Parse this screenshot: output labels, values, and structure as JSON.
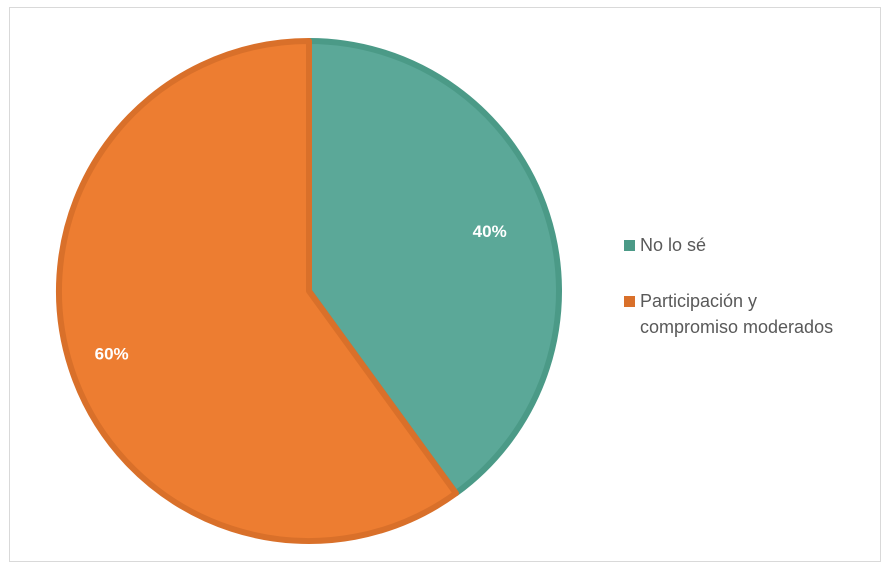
{
  "chart_data": {
    "type": "pie",
    "title": "",
    "slices": [
      {
        "label": "No lo sé",
        "value": 40,
        "data_label": "40%",
        "color": "#5ba898",
        "stroke": "#4b9a87"
      },
      {
        "label": "Participación y\ncompromiso moderados",
        "value": 60,
        "data_label": "60%",
        "color": "#ed7d31",
        "stroke": "#d9702a"
      }
    ],
    "start_angle_deg": 0,
    "direction": "clockwise",
    "legend_position": "right"
  }
}
